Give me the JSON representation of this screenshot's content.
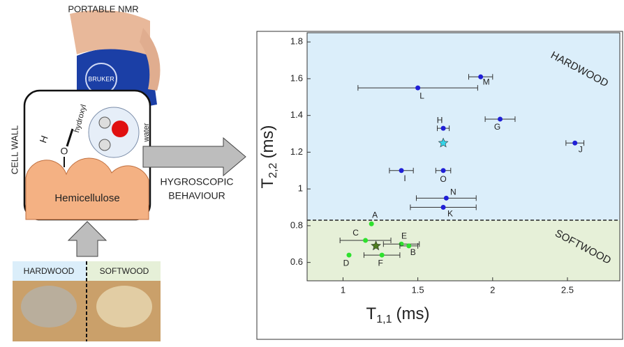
{
  "diagram": {
    "device": "PORTABLE NMR",
    "brand": "BRUKER",
    "cell_wall": "CELL WALL",
    "hydrogen": "H",
    "oxygen": "O",
    "hydroxyl": "hydroxyl",
    "water": "water",
    "polymer": "Hemicellulose",
    "arrow_label": [
      "HYGROSCOPIC",
      "BEHAVIOUR"
    ],
    "samples": [
      "HARDWOOD",
      "SOFTWOOD"
    ]
  },
  "chart_data": {
    "type": "scatter",
    "xlabel": {
      "symbol": "T",
      "sub": "1,1",
      "unit": "(ms)"
    },
    "ylabel": {
      "symbol": "T",
      "sub": "2,2",
      "unit": "(ms)"
    },
    "xlim": [
      0.76,
      2.85
    ],
    "ylim": [
      0.5,
      1.85
    ],
    "xticks": [
      1,
      1.5,
      2,
      2.5
    ],
    "yticks": [
      0.6,
      0.8,
      1,
      1.2,
      1.4,
      1.6,
      1.8
    ],
    "threshold": 0.83,
    "series": [
      {
        "name": "HARDWOOD",
        "color": "#1f1fd6",
        "region_color": "#dbeefa",
        "mean_color": "#35d4e8",
        "labels": [
          "M",
          "L",
          "H",
          "G",
          null,
          "J",
          "I",
          "O",
          "N",
          "K"
        ],
        "x": [
          1.92,
          1.5,
          1.67,
          2.05,
          1.67,
          2.55,
          1.39,
          1.67,
          1.69,
          1.67
        ],
        "values": [
          1.61,
          1.55,
          1.33,
          1.38,
          1.25,
          1.25,
          1.1,
          1.1,
          0.95,
          0.9
        ],
        "xerr": [
          0.08,
          0.4,
          0.04,
          0.1,
          null,
          0.06,
          0.08,
          0.05,
          0.2,
          0.22
        ]
      },
      {
        "name": "SOFTWOOD",
        "color": "#2ee02e",
        "region_color": "#e6f0d8",
        "mean_color": "#4e7d1e",
        "labels": [
          "A",
          "C",
          "E",
          "B",
          null,
          "D",
          "F"
        ],
        "x": [
          1.19,
          1.15,
          1.39,
          1.44,
          1.22,
          1.04,
          1.26
        ],
        "values": [
          0.81,
          0.72,
          0.7,
          0.69,
          0.69,
          0.64,
          0.64
        ],
        "xerr": [
          null,
          0.17,
          0.12,
          0.06,
          null,
          null,
          0.12
        ]
      }
    ]
  }
}
